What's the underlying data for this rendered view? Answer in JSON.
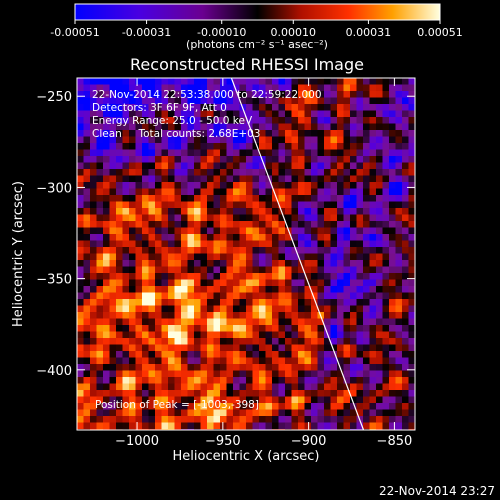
{
  "colorbar": {
    "ticks": [
      "-0.00051",
      "-0.00031",
      "-0.00010",
      "0.00010",
      "0.00031",
      "0.00051"
    ],
    "tick_values": [
      -0.00051,
      -0.00031,
      -0.0001,
      0.0001,
      0.00031,
      0.00051
    ],
    "range": [
      -0.00051,
      0.00051
    ],
    "units": "(photons cm⁻² s⁻¹ asec⁻²)",
    "colors": [
      "#0000ff",
      "#5a00d8",
      "#7a1090",
      "#000000",
      "#b01000",
      "#ff3000",
      "#ffa000",
      "#ffffe0"
    ]
  },
  "chart_data": {
    "type": "heatmap",
    "title": "Reconstructed RHESSI Image",
    "xlabel": "Heliocentric X (arcsec)",
    "ylabel": "Heliocentric Y (arcsec)",
    "xlim": [
      -1035,
      -838
    ],
    "ylim": [
      -433,
      -240
    ],
    "x_ticks": [
      -1000,
      -950,
      -900,
      -850
    ],
    "x_tick_labels": [
      "−1000",
      "−950",
      "−900",
      "−850"
    ],
    "y_ticks": [
      -250,
      -300,
      -350,
      -400
    ],
    "y_tick_labels": [
      "−250",
      "−300",
      "−350",
      "−400"
    ],
    "limb_line": [
      [
        -945,
        -240
      ],
      [
        -868,
        -433
      ]
    ],
    "peak": [
      -1003,
      -398
    ],
    "annotations": [
      "22-Nov-2014 22:53:38.000 to 22:59:22.000",
      "Detectors: 3F 6F 9F, Att 0",
      "Energy Range: 25.0 - 50.0 keV",
      "Clean     Total counts: 2.68E+03"
    ],
    "peak_label": "Position of Peak = [-1003,-398]"
  },
  "footer": {
    "timestamp": "22-Nov-2014 23:27"
  }
}
